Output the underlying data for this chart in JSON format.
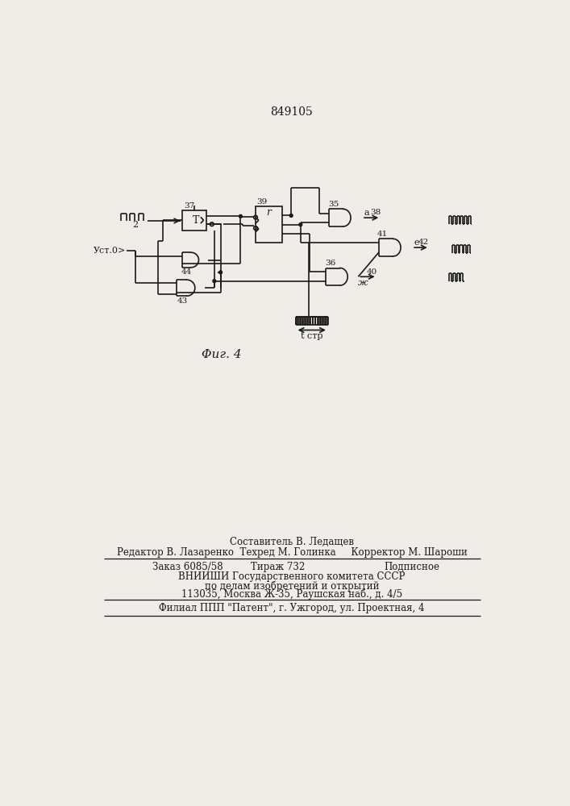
{
  "title": "849105",
  "fig_label": "Φиг. 4",
  "background_color": "#f0ede8",
  "line_color": "#1a1a1a",
  "text_color": "#1a1a1a",
  "composer_line": "Составитель В. Ледащев",
  "editor_line": "Редактор В. Лазаренко  Техред М. Голинка     Корректор М. Шароши",
  "order_line1": "Заказ 6085/58",
  "order_line2": "Тираж 732",
  "order_line3": "Подписное",
  "vniishi_line1": "ВНИИШИ Государственного комитета СССР",
  "vniishi_line2": "по делам изобретений и открытий",
  "vniishi_line3": "113035, Москва Ж-35, Раушская наб., д. 4/5",
  "filial_line": "Филиал ППП \"Патент\", г. Ужгород, ул. Проектная, 4"
}
